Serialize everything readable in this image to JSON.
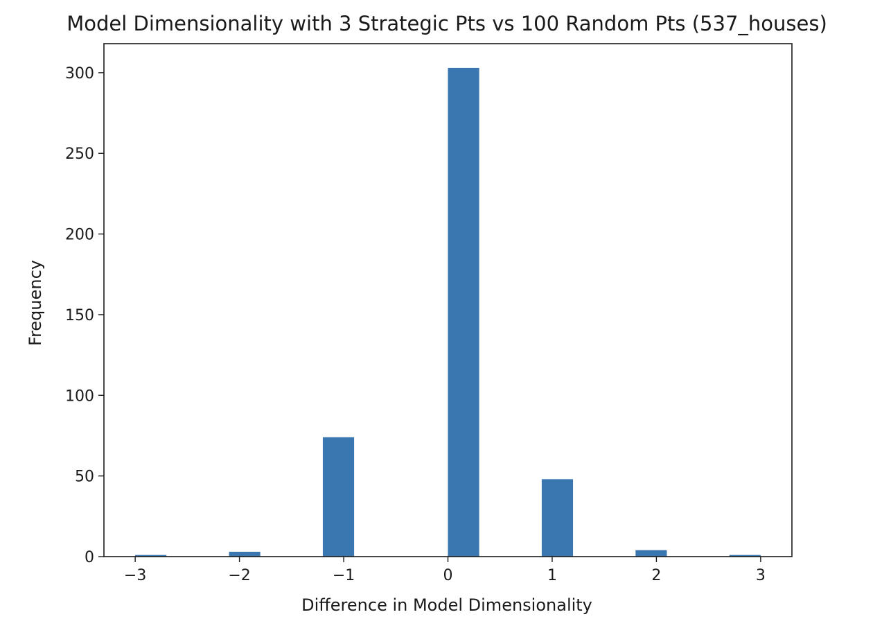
{
  "chart_data": {
    "type": "bar",
    "title": "Model Dimensionality with 3 Strategic Pts vs 100 Random Pts (537_houses)",
    "xlabel": "Difference in Model Dimensionality",
    "ylabel": "Frequency",
    "xlim": [
      -3.3,
      3.3
    ],
    "ylim": [
      0,
      318
    ],
    "xticks": [
      -3,
      -2,
      -1,
      0,
      1,
      2,
      3
    ],
    "xtick_labels": [
      "−3",
      "−2",
      "−1",
      "0",
      "1",
      "2",
      "3"
    ],
    "yticks": [
      0,
      50,
      100,
      150,
      200,
      250,
      300
    ],
    "ytick_labels": [
      "0",
      "50",
      "100",
      "150",
      "200",
      "250",
      "300"
    ],
    "bar_color": "#3a76af",
    "grid": false,
    "legend": "none",
    "bars": [
      {
        "x0": -3.0,
        "x1": -2.7,
        "value": 1
      },
      {
        "x0": -2.1,
        "x1": -1.8,
        "value": 3
      },
      {
        "x0": -1.2,
        "x1": -0.9,
        "value": 74
      },
      {
        "x0": 0.0,
        "x1": 0.3,
        "value": 303
      },
      {
        "x0": 0.9,
        "x1": 1.2,
        "value": 48
      },
      {
        "x0": 1.8,
        "x1": 2.1,
        "value": 4
      },
      {
        "x0": 2.7,
        "x1": 3.0,
        "value": 1
      }
    ]
  }
}
